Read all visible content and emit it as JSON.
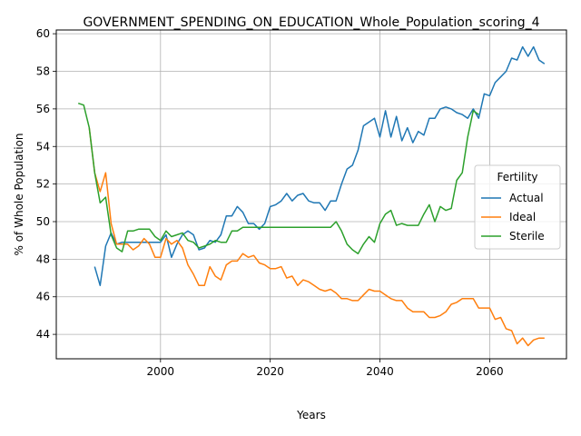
{
  "chart_data": {
    "type": "line",
    "title": "GOVERNMENT_SPENDING_ON_EDUCATION_Whole_Population_scoring_4",
    "xlabel": "Years",
    "ylabel": "% of Whole Population",
    "xlim": [
      1981,
      2074
    ],
    "ylim": [
      42.7,
      60.2
    ],
    "xticks": [
      2000,
      2020,
      2040,
      2060
    ],
    "yticks": [
      44,
      46,
      48,
      50,
      52,
      54,
      56,
      58,
      60
    ],
    "grid": true,
    "legend": {
      "title": "Fertility",
      "placement": "right"
    },
    "series": [
      {
        "name": "Actual",
        "color": "#1f77b4",
        "x": [
          1988,
          1989,
          1990,
          1991,
          1992,
          1993,
          1994,
          1995,
          1996,
          1997,
          1998,
          1999,
          2000,
          2001,
          2002,
          2003,
          2004,
          2005,
          2006,
          2007,
          2008,
          2009,
          2010,
          2011,
          2012,
          2013,
          2014,
          2015,
          2016,
          2017,
          2018,
          2019,
          2020,
          2021,
          2022,
          2023,
          2024,
          2025,
          2026,
          2027,
          2028,
          2029,
          2030,
          2031,
          2032,
          2033,
          2034,
          2035,
          2036,
          2037,
          2038,
          2039,
          2040,
          2041,
          2042,
          2043,
          2044,
          2045,
          2046,
          2047,
          2048,
          2049,
          2050,
          2051,
          2052,
          2053,
          2054,
          2055,
          2056,
          2057,
          2058,
          2059,
          2060,
          2061,
          2062,
          2063,
          2064,
          2065,
          2066,
          2067,
          2068,
          2069,
          2070
        ],
        "values": [
          47.6,
          46.6,
          48.7,
          49.4,
          48.8,
          48.9,
          48.9,
          48.9,
          48.9,
          48.9,
          48.9,
          48.9,
          48.9,
          49.3,
          48.1,
          48.8,
          49.3,
          49.5,
          49.3,
          48.5,
          48.6,
          49.0,
          48.9,
          49.3,
          50.3,
          50.3,
          50.8,
          50.5,
          49.9,
          49.9,
          49.6,
          49.9,
          50.8,
          50.9,
          51.1,
          51.5,
          51.1,
          51.4,
          51.5,
          51.1,
          51.0,
          51.0,
          50.6,
          51.1,
          51.1,
          52.0,
          52.8,
          53.0,
          53.8,
          55.1,
          55.3,
          55.5,
          54.5,
          55.9,
          54.5,
          55.6,
          54.3,
          55.0,
          54.2,
          54.8,
          54.6,
          55.5,
          55.5,
          56.0,
          56.1,
          56.0,
          55.8,
          55.7,
          55.5,
          56.0,
          55.5,
          56.8,
          56.7,
          57.4,
          57.7,
          58.0,
          58.7,
          58.6,
          59.3,
          58.8,
          59.3,
          58.6,
          58.4
        ]
      },
      {
        "name": "Ideal",
        "color": "#ff7f0e",
        "x": [
          1987,
          1988,
          1989,
          1990,
          1991,
          1992,
          1993,
          1994,
          1995,
          1996,
          1997,
          1998,
          1999,
          2000,
          2001,
          2002,
          2003,
          2004,
          2005,
          2006,
          2007,
          2008,
          2009,
          2010,
          2011,
          2012,
          2013,
          2014,
          2015,
          2016,
          2017,
          2018,
          2019,
          2020,
          2021,
          2022,
          2023,
          2024,
          2025,
          2026,
          2027,
          2028,
          2029,
          2030,
          2031,
          2032,
          2033,
          2034,
          2035,
          2036,
          2037,
          2038,
          2039,
          2040,
          2041,
          2042,
          2043,
          2044,
          2045,
          2046,
          2047,
          2048,
          2049,
          2050,
          2051,
          2052,
          2053,
          2054,
          2055,
          2056,
          2057,
          2058,
          2059,
          2060,
          2061,
          2062,
          2063,
          2064,
          2065,
          2066,
          2067,
          2068,
          2069,
          2070
        ],
        "values": [
          55.0,
          52.6,
          51.6,
          52.6,
          49.9,
          48.8,
          48.8,
          48.8,
          48.5,
          48.7,
          49.1,
          48.8,
          48.1,
          48.1,
          49.1,
          48.8,
          49.0,
          48.6,
          47.7,
          47.2,
          46.6,
          46.6,
          47.6,
          47.1,
          46.9,
          47.7,
          47.9,
          47.9,
          48.3,
          48.1,
          48.2,
          47.8,
          47.7,
          47.5,
          47.5,
          47.6,
          47.0,
          47.1,
          46.6,
          46.9,
          46.8,
          46.6,
          46.4,
          46.3,
          46.4,
          46.2,
          45.9,
          45.9,
          45.8,
          45.8,
          46.1,
          46.4,
          46.3,
          46.3,
          46.1,
          45.9,
          45.8,
          45.8,
          45.4,
          45.2,
          45.2,
          45.2,
          44.9,
          44.9,
          45.0,
          45.2,
          45.6,
          45.7,
          45.9,
          45.9,
          45.9,
          45.4,
          45.4,
          45.4,
          44.8,
          44.9,
          44.3,
          44.2,
          43.5,
          43.8,
          43.4,
          43.7,
          43.8,
          43.8
        ]
      },
      {
        "name": "Sterile",
        "color": "#2ca02c",
        "x": [
          1985,
          1986,
          1987,
          1988,
          1989,
          1990,
          1991,
          1992,
          1993,
          1994,
          1995,
          1996,
          1997,
          1998,
          1999,
          2000,
          2001,
          2002,
          2003,
          2004,
          2005,
          2006,
          2007,
          2008,
          2009,
          2010,
          2011,
          2012,
          2013,
          2014,
          2015,
          2016,
          2017,
          2018,
          2019,
          2020,
          2021,
          2022,
          2023,
          2024,
          2025,
          2026,
          2027,
          2028,
          2029,
          2030,
          2031,
          2032,
          2033,
          2034,
          2035,
          2036,
          2037,
          2038,
          2039,
          2040,
          2041,
          2042,
          2043,
          2044,
          2045,
          2046,
          2047,
          2048,
          2049,
          2050,
          2051,
          2052,
          2053,
          2054,
          2055,
          2056,
          2057,
          2058
        ],
        "values": [
          56.3,
          56.2,
          55.0,
          52.6,
          51.0,
          51.3,
          49.3,
          48.6,
          48.4,
          49.5,
          49.5,
          49.6,
          49.6,
          49.6,
          49.2,
          49.0,
          49.5,
          49.2,
          49.3,
          49.4,
          49.0,
          48.9,
          48.6,
          48.7,
          48.8,
          49.0,
          48.9,
          48.9,
          49.5,
          49.5,
          49.7,
          49.7,
          49.7,
          49.7,
          49.7,
          49.7,
          49.7,
          49.7,
          49.7,
          49.7,
          49.7,
          49.7,
          49.7,
          49.7,
          49.7,
          49.7,
          49.7,
          50.0,
          49.5,
          48.8,
          48.5,
          48.3,
          48.8,
          49.2,
          48.9,
          49.9,
          50.4,
          50.6,
          49.8,
          49.9,
          49.8,
          49.8,
          49.8,
          50.4,
          50.9,
          50.0,
          50.8,
          50.6,
          50.7,
          52.2,
          52.6,
          54.5,
          55.9,
          55.7
        ]
      }
    ]
  }
}
